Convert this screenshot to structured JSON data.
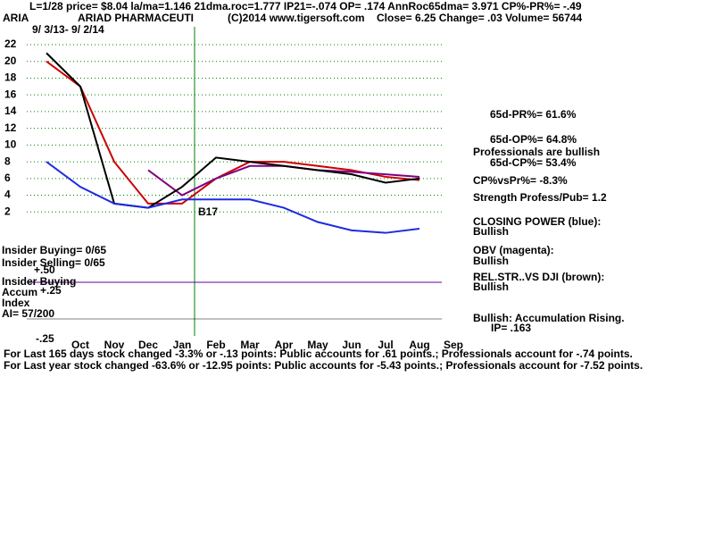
{
  "header": {
    "line1": "L=1/28  price= $8.04  la/ma=1.146 21dma.roc=1.777 IP21=-.074 OP= .174 AnnRoc65dma= 3.971 CP%-PR%= -.49",
    "ticker": "ARIA",
    "company": "ARIAD PHARMACEUTI",
    "source": "(C)2014 www.tigersoft.com",
    "quote": "Close=  6.25  Change= .03 Volume= 56744"
  },
  "chart_data": {
    "type": "line",
    "subtitle": "9/ 3/13- 9/ 2/14",
    "categories": [
      null,
      "Oct",
      "Nov",
      "Dec",
      "Jan",
      "Feb",
      "Mar",
      "Apr",
      "May",
      "Jun",
      "Jul",
      "Aug",
      "Sep"
    ],
    "ylim": [
      0,
      22
    ],
    "yticks": [
      2,
      4,
      6,
      8,
      10,
      12,
      14,
      16,
      18,
      20,
      22
    ],
    "grid": true,
    "series": [
      {
        "color": "#cc0000",
        "values": [
          20,
          17,
          8,
          3,
          3,
          6,
          8,
          8,
          7.5,
          7,
          6.2,
          5.8,
          null
        ]
      },
      {
        "color": "#800080",
        "values": [
          null,
          null,
          null,
          7,
          4,
          6,
          7.5,
          7.5,
          7,
          6.8,
          6.5,
          6.2,
          null
        ]
      },
      {
        "color": "#000000",
        "values": [
          21,
          17,
          3,
          2.5,
          5,
          8.5,
          8,
          7.5,
          7,
          6.5,
          5.5,
          6,
          null
        ]
      },
      {
        "color": "#1e2be0",
        "values": [
          8,
          5,
          3,
          2.5,
          3.5,
          3.5,
          3.5,
          2.5,
          0.8,
          -0.2,
          -0.5,
          0,
          null
        ]
      }
    ]
  },
  "annotations": {
    "signal": "B17",
    "insider_buying": "Insider Buying= 0/65",
    "insider_selling": "Insider Selling= 0/65",
    "plus50": "+.50",
    "insider_buying2": "Insider Buying",
    "accum": "Accum",
    "plus25": "+.25",
    "index": "Index",
    "ai": "AI= 57/200",
    "minus25": "-.25"
  },
  "side_panel": [
    "65d-PR%= 61.6%",
    "65d-OP%= 64.8%",
    "Professionals are bullish",
    "65d-CP%= 53.4%",
    "CP%vsPr%= -8.3%",
    "Strength Profess/Pub= 1.2",
    "CLOSING POWER (blue):",
    "Bullish",
    "OBV (magenta):",
    "Bullish",
    "REL.STR..VS DJI (brown):",
    "Bullish",
    "Bullish: Accumulation Rising.",
    "IP=  .163"
  ],
  "footer": [
    "For Last 165 days stock changed -3.3% or -.13 points:  Public accounts for  .61 points.;  Professionals account for -.74 points.",
    "For Last year stock changed -63.6% or -12.95 points:  Public accounts for -5.43 points.;  Professionals account for -7.52 points."
  ]
}
